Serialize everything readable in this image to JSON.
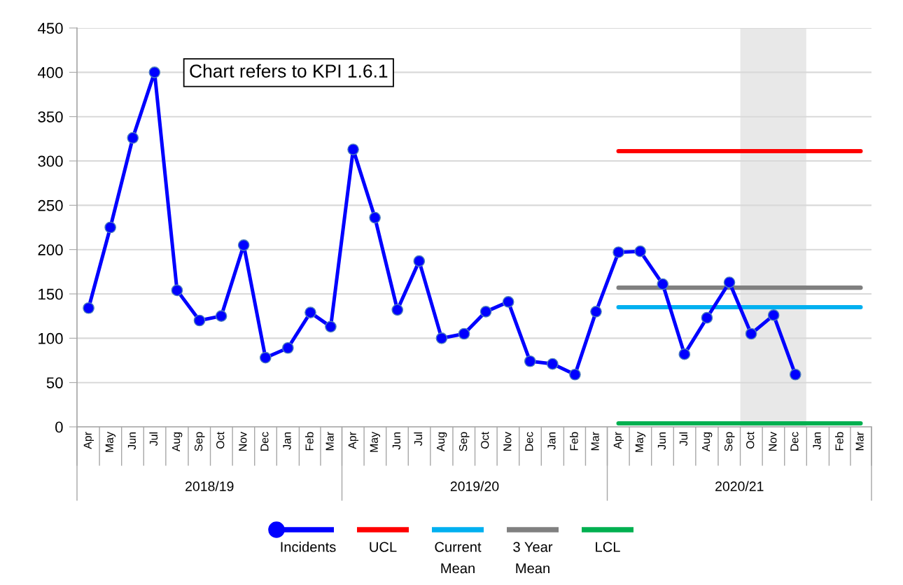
{
  "chart_data": {
    "type": "line",
    "x": [
      "2018-04",
      "2018-05",
      "2018-06",
      "2018-07",
      "2018-08",
      "2018-09",
      "2018-10",
      "2018-11",
      "2018-12",
      "2019-01",
      "2019-02",
      "2019-03",
      "2019-04",
      "2019-05",
      "2019-06",
      "2019-07",
      "2019-08",
      "2019-09",
      "2019-10",
      "2019-11",
      "2019-12",
      "2020-01",
      "2020-02",
      "2020-03",
      "2020-04",
      "2020-05",
      "2020-06",
      "2020-07",
      "2020-08",
      "2020-09",
      "2020-10",
      "2020-11",
      "2020-12",
      "2021-01",
      "2021-02",
      "2021-03"
    ],
    "xlim": [
      "2018-03-16",
      "2021-03-16"
    ],
    "xticks": [
      {
        "value": "2018-04",
        "label": "Apr"
      },
      {
        "value": "2018-05",
        "label": "May"
      },
      {
        "value": "2018-06",
        "label": "Jun"
      },
      {
        "value": "2018-07",
        "label": "Jul"
      },
      {
        "value": "2018-08",
        "label": "Aug"
      },
      {
        "value": "2018-09",
        "label": "Sep"
      },
      {
        "value": "2018-10",
        "label": "Oct"
      },
      {
        "value": "2018-11",
        "label": "Nov"
      },
      {
        "value": "2018-12",
        "label": "Dec"
      },
      {
        "value": "2019-01",
        "label": "Jan"
      },
      {
        "value": "2019-02",
        "label": "Feb"
      },
      {
        "value": "2019-03",
        "label": "Mar"
      },
      {
        "value": "2019-04",
        "label": "Apr"
      },
      {
        "value": "2019-05",
        "label": "May"
      },
      {
        "value": "2019-06",
        "label": "Jun"
      },
      {
        "value": "2019-07",
        "label": "Jul"
      },
      {
        "value": "2019-08",
        "label": "Aug"
      },
      {
        "value": "2019-09",
        "label": "Sep"
      },
      {
        "value": "2019-10",
        "label": "Oct"
      },
      {
        "value": "2019-11",
        "label": "Nov"
      },
      {
        "value": "2019-12",
        "label": "Dec"
      },
      {
        "value": "2020-01",
        "label": "Jan"
      },
      {
        "value": "2020-02",
        "label": "Feb"
      },
      {
        "value": "2020-03",
        "label": "Mar"
      },
      {
        "value": "2020-04",
        "label": "Apr"
      },
      {
        "value": "2020-05",
        "label": "May"
      },
      {
        "value": "2020-06",
        "label": "Jun"
      },
      {
        "value": "2020-07",
        "label": "Jul"
      },
      {
        "value": "2020-08",
        "label": "Aug"
      },
      {
        "value": "2020-09",
        "label": "Sep"
      },
      {
        "value": "2020-10",
        "label": "Oct"
      },
      {
        "value": "2020-11",
        "label": "Nov"
      },
      {
        "value": "2020-12",
        "label": "Dec"
      },
      {
        "value": "2021-01",
        "label": "Jan"
      },
      {
        "value": "2021-02",
        "label": "Feb"
      },
      {
        "value": "2021-03",
        "label": "Mar"
      }
    ],
    "ylim": [
      0,
      450
    ],
    "yticks": [
      0,
      50,
      100,
      150,
      200,
      250,
      300,
      350,
      400,
      450
    ],
    "grid": "y",
    "legend": "bottom",
    "annotations": [
      "Chart refers to KPI 1.6.1",
      "2018/19",
      "2019/20",
      "2020/21"
    ],
    "bands": [
      {
        "axis": "x",
        "from": "2020-09-16",
        "to": "2020-12-16",
        "color": "#e8e8e8"
      }
    ],
    "series": [
      {
        "name": "Incidents",
        "color": "#0000ff",
        "marker": "circle",
        "values": [
          134,
          225,
          326,
          400,
          154,
          120,
          125,
          205,
          78,
          89,
          129,
          113,
          313,
          236,
          132,
          187,
          100,
          105,
          130,
          141,
          74,
          71,
          59,
          130,
          197,
          198,
          161,
          82,
          123,
          163,
          105,
          126,
          59,
          null,
          null,
          null
        ]
      },
      {
        "name": "UCL",
        "color": "#ff0000",
        "values": [
          null,
          null,
          null,
          null,
          null,
          null,
          null,
          null,
          null,
          null,
          null,
          null,
          null,
          null,
          null,
          null,
          null,
          null,
          null,
          null,
          null,
          null,
          null,
          null,
          311,
          311,
          311,
          311,
          311,
          311,
          311,
          311,
          311,
          311,
          311,
          311
        ]
      },
      {
        "name": "Current Mean",
        "color": "#00b0f0",
        "values": [
          null,
          null,
          null,
          null,
          null,
          null,
          null,
          null,
          null,
          null,
          null,
          null,
          null,
          null,
          null,
          null,
          null,
          null,
          null,
          null,
          null,
          null,
          null,
          null,
          135,
          135,
          135,
          135,
          135,
          135,
          135,
          135,
          135,
          135,
          135,
          135
        ]
      },
      {
        "name": "3 Year Mean",
        "color": "#808080",
        "values": [
          null,
          null,
          null,
          null,
          null,
          null,
          null,
          null,
          null,
          null,
          null,
          null,
          null,
          null,
          null,
          null,
          null,
          null,
          null,
          null,
          null,
          null,
          null,
          null,
          157,
          157,
          157,
          157,
          157,
          157,
          157,
          157,
          157,
          157,
          157,
          157
        ]
      },
      {
        "name": "LCL",
        "color": "#00b050",
        "values": [
          null,
          null,
          null,
          null,
          null,
          null,
          null,
          null,
          null,
          null,
          null,
          null,
          null,
          null,
          null,
          null,
          null,
          null,
          null,
          null,
          null,
          null,
          null,
          null,
          4,
          4,
          4,
          4,
          4,
          4,
          4,
          4,
          4,
          4,
          4,
          4
        ]
      }
    ]
  }
}
